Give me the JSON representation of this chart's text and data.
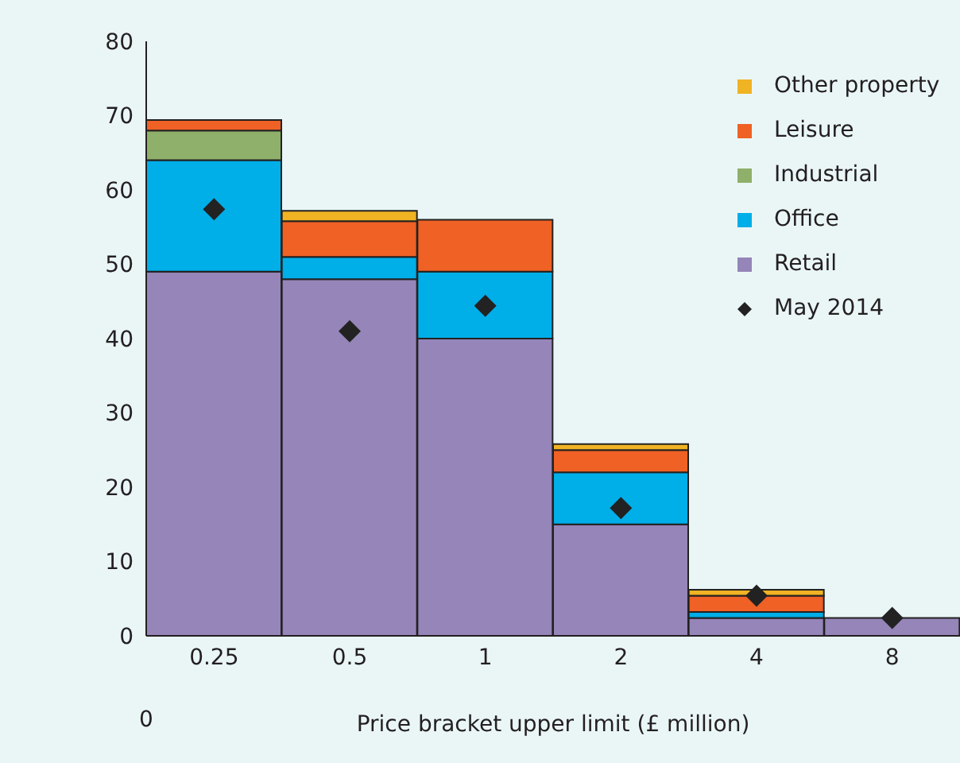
{
  "chart_data": {
    "type": "bar",
    "stacked": true,
    "xlabel": "Price bracket upper limit (£ million)",
    "categories": [
      "0.25",
      "0.5",
      "1",
      "2",
      "4",
      "8"
    ],
    "annotations": [
      "0"
    ],
    "ylim": [
      0,
      80
    ],
    "yticks": [
      0,
      10,
      20,
      30,
      40,
      50,
      60,
      70,
      80
    ],
    "legend": "top right",
    "series": [
      {
        "name": "Retail",
        "color": "#9585b8",
        "values": [
          49,
          48,
          40,
          15,
          2.4,
          2.4
        ]
      },
      {
        "name": "Office",
        "color": "#00aee8",
        "values": [
          15,
          3,
          9,
          7,
          0.8,
          0
        ]
      },
      {
        "name": "Industrial",
        "color": "#8fb06a",
        "values": [
          4,
          0,
          0,
          0,
          0,
          0
        ]
      },
      {
        "name": "Leisure",
        "color": "#ef6125",
        "values": [
          1.4,
          4.8,
          7,
          3,
          2.2,
          0
        ]
      },
      {
        "name": "Other property",
        "color": "#f0b323",
        "values": [
          0,
          1.4,
          0,
          0.8,
          0.8,
          0
        ]
      },
      {
        "name": "May 2014",
        "type": "scatter",
        "marker": "diamond",
        "color": "#222222",
        "values": [
          57.4,
          41,
          44.4,
          17.2,
          5.4,
          2.4
        ]
      }
    ]
  }
}
